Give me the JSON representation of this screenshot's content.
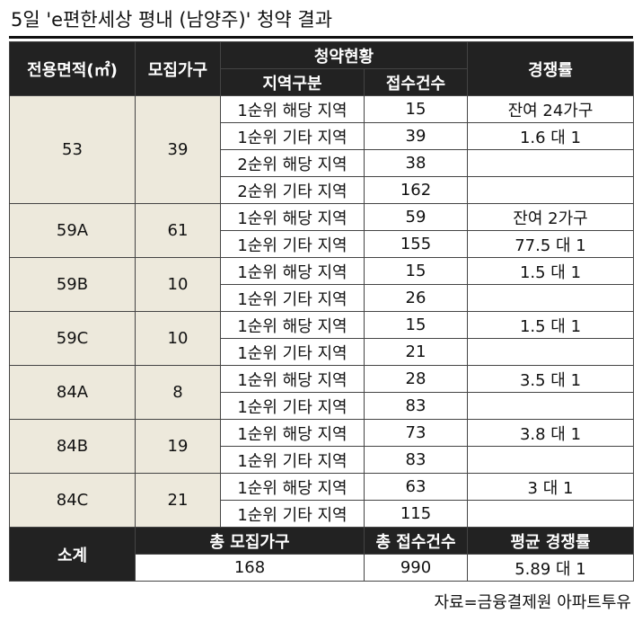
{
  "title": "5일 'e편한세상 평내 (남양주)' 청약 결과",
  "header": {
    "area": "전용면적(㎡)",
    "households": "모집가구",
    "status": "청약현황",
    "region": "지역구분",
    "count": "접수건수",
    "ratio": "경쟁률"
  },
  "groups": [
    {
      "area": "53",
      "households": 39,
      "rows": [
        {
          "region": "1순위 해당 지역",
          "count": 15,
          "ratio": "잔여 24가구"
        },
        {
          "region": "1순위 기타 지역",
          "count": 39,
          "ratio": "1.6 대 1"
        },
        {
          "region": "2순위 해당 지역",
          "count": 38
        },
        {
          "region": "2순위 기타 지역",
          "count": 162
        }
      ]
    },
    {
      "area": "59A",
      "households": 61,
      "rows": [
        {
          "region": "1순위 해당 지역",
          "count": 59,
          "ratio": "잔여 2가구"
        },
        {
          "region": "1순위 기타 지역",
          "count": 155,
          "ratio": "77.5 대 1"
        }
      ]
    },
    {
      "area": "59B",
      "households": 10,
      "rows": [
        {
          "region": "1순위 해당 지역",
          "count": 15,
          "ratio": "1.5 대 1"
        },
        {
          "region": "1순위 기타 지역",
          "count": 26
        }
      ]
    },
    {
      "area": "59C",
      "households": 10,
      "rows": [
        {
          "region": "1순위 해당 지역",
          "count": 15,
          "ratio": "1.5 대 1"
        },
        {
          "region": "1순위 기타 지역",
          "count": 21
        }
      ]
    },
    {
      "area": "84A",
      "households": 8,
      "rows": [
        {
          "region": "1순위 해당 지역",
          "count": 28,
          "ratio": "3.5 대 1"
        },
        {
          "region": "1순위 기타 지역",
          "count": 83
        }
      ]
    },
    {
      "area": "84B",
      "households": 19,
      "rows": [
        {
          "region": "1순위 해당 지역",
          "count": 73,
          "ratio": "3.8 대 1"
        },
        {
          "region": "1순위 기타 지역",
          "count": 83
        }
      ]
    },
    {
      "area": "84C",
      "households": 21,
      "rows": [
        {
          "region": "1순위 해당 지역",
          "count": 63,
          "ratio": "3 대 1"
        },
        {
          "region": "1순위 기타 지역",
          "count": 115
        }
      ]
    }
  ],
  "summary": {
    "label": "소계",
    "total_households_label": "총 모집가구",
    "total_count_label": "총 접수건수",
    "avg_ratio_label": "평균 경쟁률",
    "total_households": 168,
    "total_count": 990,
    "avg_ratio": "5.89 대 1"
  },
  "source": "자료=금융결제원 아파트투유"
}
